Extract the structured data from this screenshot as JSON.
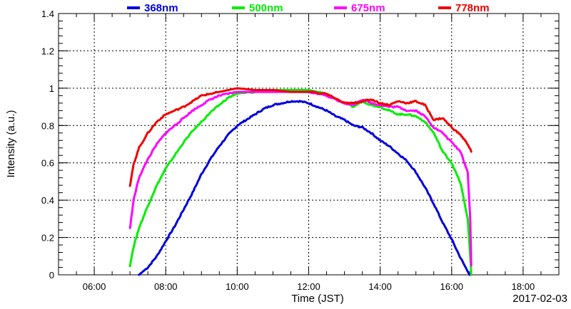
{
  "chart_data": {
    "type": "line",
    "title": "",
    "xlabel": "Time (JST)",
    "ylabel": "Intensity (a.u.)",
    "date_label": "2017-02-03",
    "xlim_hours": [
      5.0,
      19.0
    ],
    "ylim": [
      0,
      1.4
    ],
    "grid": true,
    "legend_placement": "top",
    "x_ticks": [
      {
        "hour": 6,
        "label": "06:00"
      },
      {
        "hour": 8,
        "label": "08:00"
      },
      {
        "hour": 10,
        "label": "10:00"
      },
      {
        "hour": 12,
        "label": "12:00"
      },
      {
        "hour": 14,
        "label": "14:00"
      },
      {
        "hour": 16,
        "label": "16:00"
      },
      {
        "hour": 18,
        "label": "18:00"
      }
    ],
    "y_ticks": [
      {
        "value": 0,
        "label": "0"
      },
      {
        "value": 0.2,
        "label": "0.2"
      },
      {
        "value": 0.4,
        "label": "0.4"
      },
      {
        "value": 0.6,
        "label": "0.6"
      },
      {
        "value": 0.8,
        "label": "0.8"
      },
      {
        "value": 1.0,
        "label": "1"
      },
      {
        "value": 1.2,
        "label": "1.2"
      },
      {
        "value": 1.4,
        "label": "1.4"
      }
    ],
    "series": [
      {
        "name": "368nm",
        "color": "#0000dd",
        "points": [
          [
            7.25,
            0.0
          ],
          [
            7.5,
            0.04
          ],
          [
            7.75,
            0.1
          ],
          [
            8.0,
            0.18
          ],
          [
            8.25,
            0.26
          ],
          [
            8.5,
            0.35
          ],
          [
            8.75,
            0.44
          ],
          [
            9.0,
            0.54
          ],
          [
            9.25,
            0.62
          ],
          [
            9.5,
            0.69
          ],
          [
            9.75,
            0.75
          ],
          [
            10.0,
            0.8
          ],
          [
            10.25,
            0.83
          ],
          [
            10.5,
            0.86
          ],
          [
            10.75,
            0.89
          ],
          [
            11.0,
            0.91
          ],
          [
            11.25,
            0.92
          ],
          [
            11.5,
            0.93
          ],
          [
            11.75,
            0.93
          ],
          [
            12.0,
            0.92
          ],
          [
            12.25,
            0.9
          ],
          [
            12.5,
            0.88
          ],
          [
            12.75,
            0.85
          ],
          [
            13.0,
            0.83
          ],
          [
            13.25,
            0.8
          ],
          [
            13.5,
            0.79
          ],
          [
            13.75,
            0.76
          ],
          [
            14.0,
            0.72
          ],
          [
            14.25,
            0.69
          ],
          [
            14.5,
            0.65
          ],
          [
            14.75,
            0.61
          ],
          [
            15.0,
            0.55
          ],
          [
            15.25,
            0.47
          ],
          [
            15.5,
            0.38
          ],
          [
            15.75,
            0.28
          ],
          [
            16.0,
            0.19
          ],
          [
            16.25,
            0.09
          ],
          [
            16.5,
            0.0
          ]
        ]
      },
      {
        "name": "500nm",
        "color": "#00ee00",
        "points": [
          [
            7.0,
            0.05
          ],
          [
            7.1,
            0.15
          ],
          [
            7.25,
            0.25
          ],
          [
            7.5,
            0.37
          ],
          [
            7.75,
            0.48
          ],
          [
            8.0,
            0.57
          ],
          [
            8.25,
            0.64
          ],
          [
            8.5,
            0.71
          ],
          [
            8.75,
            0.77
          ],
          [
            9.0,
            0.82
          ],
          [
            9.25,
            0.87
          ],
          [
            9.5,
            0.91
          ],
          [
            9.75,
            0.95
          ],
          [
            10.0,
            0.97
          ],
          [
            10.5,
            0.98
          ],
          [
            11.0,
            0.99
          ],
          [
            11.5,
            0.99
          ],
          [
            12.0,
            0.99
          ],
          [
            12.5,
            0.97
          ],
          [
            13.0,
            0.92
          ],
          [
            13.25,
            0.9
          ],
          [
            13.5,
            0.93
          ],
          [
            13.75,
            0.91
          ],
          [
            14.0,
            0.9
          ],
          [
            14.25,
            0.88
          ],
          [
            14.5,
            0.86
          ],
          [
            14.75,
            0.86
          ],
          [
            15.0,
            0.85
          ],
          [
            15.25,
            0.82
          ],
          [
            15.5,
            0.76
          ],
          [
            15.75,
            0.66
          ],
          [
            16.0,
            0.6
          ],
          [
            16.25,
            0.49
          ],
          [
            16.45,
            0.3
          ],
          [
            16.52,
            0.1
          ],
          [
            16.55,
            0.0
          ]
        ]
      },
      {
        "name": "675nm",
        "color": "#ff00ff",
        "points": [
          [
            7.0,
            0.25
          ],
          [
            7.1,
            0.4
          ],
          [
            7.25,
            0.52
          ],
          [
            7.5,
            0.62
          ],
          [
            7.75,
            0.7
          ],
          [
            8.0,
            0.76
          ],
          [
            8.25,
            0.8
          ],
          [
            8.5,
            0.84
          ],
          [
            8.75,
            0.88
          ],
          [
            9.0,
            0.91
          ],
          [
            9.25,
            0.94
          ],
          [
            9.5,
            0.96
          ],
          [
            9.75,
            0.97
          ],
          [
            10.0,
            0.98
          ],
          [
            10.5,
            0.98
          ],
          [
            11.0,
            0.98
          ],
          [
            11.5,
            0.98
          ],
          [
            12.0,
            0.98
          ],
          [
            12.5,
            0.96
          ],
          [
            13.0,
            0.92
          ],
          [
            13.25,
            0.91
          ],
          [
            13.5,
            0.94
          ],
          [
            13.75,
            0.92
          ],
          [
            14.0,
            0.91
          ],
          [
            14.25,
            0.9
          ],
          [
            14.5,
            0.9
          ],
          [
            14.75,
            0.88
          ],
          [
            15.0,
            0.88
          ],
          [
            15.25,
            0.85
          ],
          [
            15.5,
            0.79
          ],
          [
            15.75,
            0.76
          ],
          [
            16.0,
            0.71
          ],
          [
            16.25,
            0.66
          ],
          [
            16.45,
            0.55
          ],
          [
            16.52,
            0.3
          ],
          [
            16.55,
            0.05
          ]
        ]
      },
      {
        "name": "778nm",
        "color": "#ee0000",
        "points": [
          [
            7.0,
            0.48
          ],
          [
            7.1,
            0.59
          ],
          [
            7.25,
            0.68
          ],
          [
            7.5,
            0.76
          ],
          [
            7.75,
            0.82
          ],
          [
            8.0,
            0.86
          ],
          [
            8.25,
            0.88
          ],
          [
            8.5,
            0.9
          ],
          [
            8.75,
            0.93
          ],
          [
            9.0,
            0.96
          ],
          [
            9.25,
            0.97
          ],
          [
            9.5,
            0.98
          ],
          [
            9.75,
            0.99
          ],
          [
            10.0,
            1.0
          ],
          [
            10.5,
            0.99
          ],
          [
            11.0,
            0.99
          ],
          [
            11.5,
            0.98
          ],
          [
            12.0,
            0.98
          ],
          [
            12.5,
            0.97
          ],
          [
            13.0,
            0.92
          ],
          [
            13.25,
            0.92
          ],
          [
            13.5,
            0.93
          ],
          [
            13.75,
            0.94
          ],
          [
            14.0,
            0.92
          ],
          [
            14.25,
            0.91
          ],
          [
            14.5,
            0.93
          ],
          [
            14.75,
            0.92
          ],
          [
            15.0,
            0.93
          ],
          [
            15.25,
            0.91
          ],
          [
            15.5,
            0.83
          ],
          [
            15.75,
            0.84
          ],
          [
            16.0,
            0.79
          ],
          [
            16.25,
            0.75
          ],
          [
            16.45,
            0.7
          ],
          [
            16.55,
            0.66
          ]
        ]
      }
    ]
  }
}
